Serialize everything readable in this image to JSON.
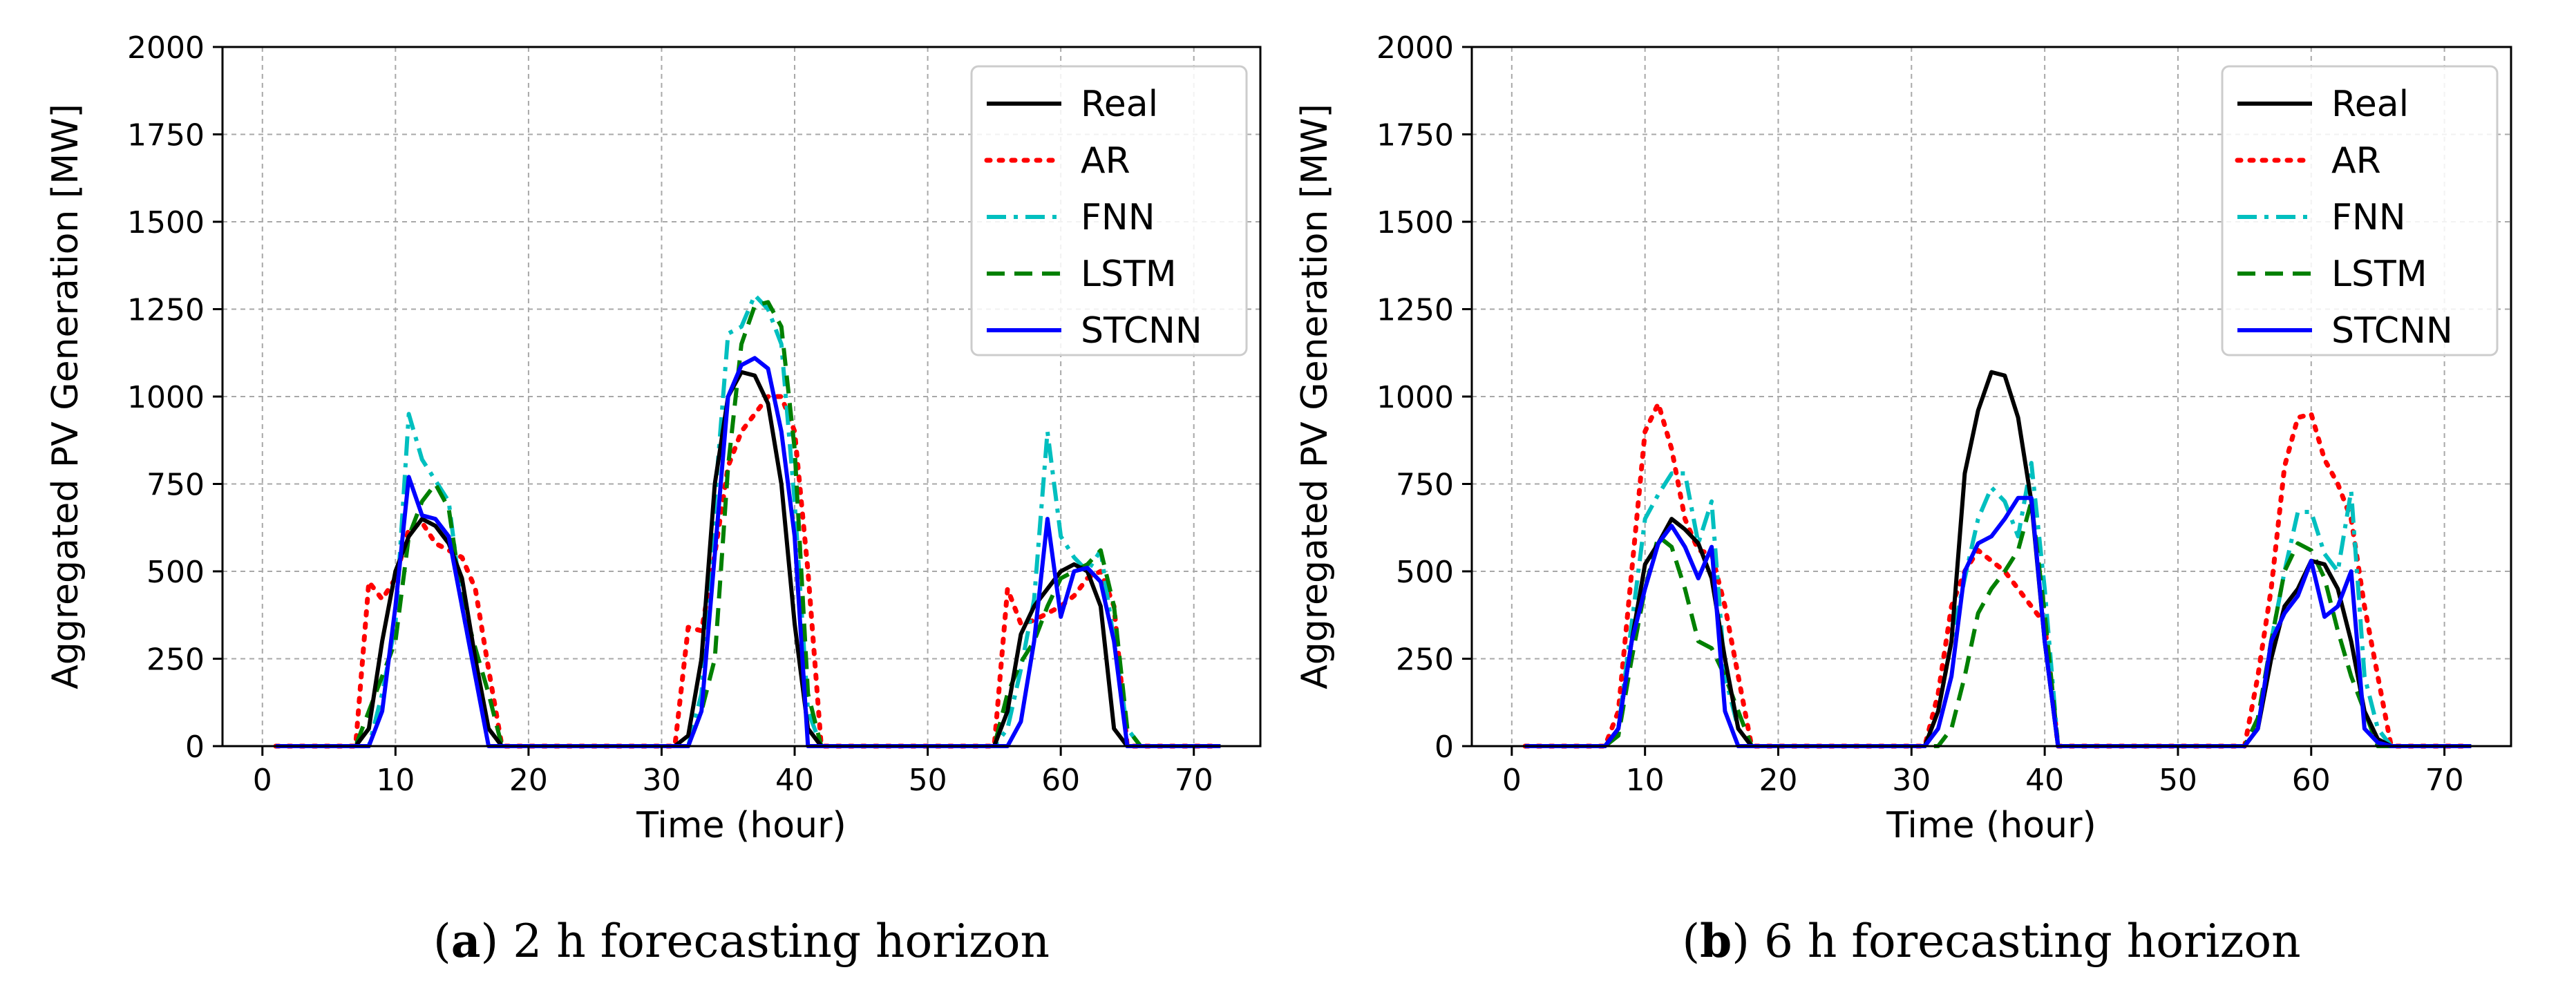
{
  "chart_data": [
    {
      "type": "line",
      "caption_letter": "a",
      "caption_text": " 2 h forecasting horizon",
      "xlabel": "Time (hour)",
      "ylabel": "Aggregated PV Generation [MW]",
      "xlim": [
        -3,
        75
      ],
      "ylim": [
        0,
        2000
      ],
      "xticks": [
        0,
        10,
        20,
        30,
        40,
        50,
        60,
        70
      ],
      "yticks": [
        0,
        250,
        500,
        750,
        1000,
        1250,
        1500,
        1750,
        2000
      ],
      "grid": true,
      "legend_position": "top-right",
      "x": [
        1,
        2,
        3,
        4,
        5,
        6,
        7,
        8,
        9,
        10,
        11,
        12,
        13,
        14,
        15,
        16,
        17,
        18,
        19,
        20,
        21,
        22,
        23,
        24,
        25,
        26,
        27,
        28,
        29,
        30,
        31,
        32,
        33,
        34,
        35,
        36,
        37,
        38,
        39,
        40,
        41,
        42,
        43,
        44,
        45,
        46,
        47,
        48,
        49,
        50,
        51,
        52,
        53,
        54,
        55,
        56,
        57,
        58,
        59,
        60,
        61,
        62,
        63,
        64,
        65,
        66,
        67,
        68,
        69,
        70,
        71,
        72
      ],
      "series": [
        {
          "name": "Real",
          "color": "#000000",
          "dash": "solid",
          "values": [
            0,
            0,
            0,
            0,
            0,
            0,
            0,
            50,
            300,
            500,
            600,
            650,
            630,
            580,
            480,
            250,
            50,
            0,
            0,
            0,
            0,
            0,
            0,
            0,
            0,
            0,
            0,
            0,
            0,
            0,
            0,
            30,
            250,
            750,
            1000,
            1070,
            1060,
            980,
            750,
            350,
            50,
            0,
            0,
            0,
            0,
            0,
            0,
            0,
            0,
            0,
            0,
            0,
            0,
            0,
            0,
            100,
            320,
            400,
            450,
            500,
            520,
            500,
            400,
            50,
            0,
            0,
            0,
            0,
            0,
            0,
            0,
            0
          ]
        },
        {
          "name": "AR",
          "color": "#ff0000",
          "dash": "dotted",
          "values": [
            0,
            0,
            0,
            0,
            0,
            0,
            0,
            470,
            420,
            480,
            620,
            640,
            580,
            560,
            540,
            450,
            220,
            0,
            0,
            0,
            0,
            0,
            0,
            0,
            0,
            0,
            0,
            0,
            0,
            0,
            0,
            340,
            330,
            550,
            800,
            900,
            950,
            1000,
            1000,
            900,
            500,
            0,
            0,
            0,
            0,
            0,
            0,
            0,
            0,
            0,
            0,
            0,
            0,
            0,
            0,
            450,
            350,
            360,
            380,
            400,
            430,
            480,
            500,
            400,
            0,
            0,
            0,
            0,
            0,
            0,
            0,
            0
          ]
        },
        {
          "name": "FNN",
          "color": "#00bfbf",
          "dash": "dashdot",
          "values": [
            0,
            0,
            0,
            0,
            0,
            0,
            0,
            0,
            150,
            350,
            950,
            820,
            760,
            700,
            400,
            200,
            50,
            0,
            0,
            0,
            0,
            0,
            0,
            0,
            0,
            0,
            0,
            0,
            0,
            0,
            0,
            0,
            150,
            700,
            1180,
            1200,
            1290,
            1250,
            1150,
            700,
            100,
            0,
            0,
            0,
            0,
            0,
            0,
            0,
            0,
            0,
            0,
            0,
            0,
            0,
            0,
            50,
            220,
            420,
            900,
            600,
            540,
            500,
            560,
            300,
            50,
            0,
            0,
            0,
            0,
            0,
            0,
            0
          ]
        },
        {
          "name": "LSTM",
          "color": "#008000",
          "dash": "dashed",
          "values": [
            0,
            0,
            0,
            0,
            0,
            0,
            0,
            100,
            200,
            300,
            600,
            700,
            750,
            680,
            420,
            280,
            150,
            0,
            0,
            0,
            0,
            0,
            0,
            0,
            0,
            0,
            0,
            0,
            0,
            0,
            0,
            0,
            100,
            250,
            800,
            1150,
            1260,
            1270,
            1200,
            850,
            150,
            0,
            0,
            0,
            0,
            0,
            0,
            0,
            0,
            0,
            0,
            0,
            0,
            0,
            0,
            150,
            240,
            300,
            400,
            480,
            500,
            520,
            560,
            400,
            50,
            0,
            0,
            0,
            0,
            0,
            0,
            0
          ]
        },
        {
          "name": "STCNN",
          "color": "#0000ff",
          "dash": "solid",
          "values": [
            0,
            0,
            0,
            0,
            0,
            0,
            0,
            0,
            100,
            400,
            770,
            660,
            650,
            600,
            400,
            200,
            0,
            0,
            0,
            0,
            0,
            0,
            0,
            0,
            0,
            0,
            0,
            0,
            0,
            0,
            0,
            0,
            100,
            550,
            1000,
            1090,
            1110,
            1080,
            900,
            600,
            0,
            0,
            0,
            0,
            0,
            0,
            0,
            0,
            0,
            0,
            0,
            0,
            0,
            0,
            0,
            0,
            70,
            300,
            650,
            370,
            500,
            510,
            470,
            300,
            0,
            0,
            0,
            0,
            0,
            0,
            0,
            0
          ]
        }
      ]
    },
    {
      "type": "line",
      "caption_letter": "b",
      "caption_text": " 6 h forecasting horizon",
      "xlabel": "Time (hour)",
      "ylabel": "Aggregated PV Generation [MW]",
      "xlim": [
        -3,
        75
      ],
      "ylim": [
        0,
        2000
      ],
      "xticks": [
        0,
        10,
        20,
        30,
        40,
        50,
        60,
        70
      ],
      "yticks": [
        0,
        250,
        500,
        750,
        1000,
        1250,
        1500,
        1750,
        2000
      ],
      "grid": true,
      "legend_position": "top-right",
      "x": [
        1,
        2,
        3,
        4,
        5,
        6,
        7,
        8,
        9,
        10,
        11,
        12,
        13,
        14,
        15,
        16,
        17,
        18,
        19,
        20,
        21,
        22,
        23,
        24,
        25,
        26,
        27,
        28,
        29,
        30,
        31,
        32,
        33,
        34,
        35,
        36,
        37,
        38,
        39,
        40,
        41,
        42,
        43,
        44,
        45,
        46,
        47,
        48,
        49,
        50,
        51,
        52,
        53,
        54,
        55,
        56,
        57,
        58,
        59,
        60,
        61,
        62,
        63,
        64,
        65,
        66,
        67,
        68,
        69,
        70,
        71,
        72
      ],
      "series": [
        {
          "name": "Real",
          "color": "#000000",
          "dash": "solid",
          "values": [
            0,
            0,
            0,
            0,
            0,
            0,
            0,
            50,
            300,
            520,
            580,
            650,
            620,
            580,
            480,
            250,
            50,
            0,
            0,
            0,
            0,
            0,
            0,
            0,
            0,
            0,
            0,
            0,
            0,
            0,
            0,
            100,
            300,
            780,
            960,
            1070,
            1060,
            940,
            700,
            300,
            0,
            0,
            0,
            0,
            0,
            0,
            0,
            0,
            0,
            0,
            0,
            0,
            0,
            0,
            0,
            50,
            250,
            400,
            450,
            530,
            520,
            450,
            300,
            100,
            20,
            0,
            0,
            0,
            0,
            0,
            0,
            0
          ]
        },
        {
          "name": "AR",
          "color": "#ff0000",
          "dash": "dotted",
          "values": [
            0,
            0,
            0,
            0,
            0,
            0,
            0,
            100,
            500,
            900,
            980,
            850,
            650,
            560,
            550,
            400,
            200,
            0,
            0,
            0,
            0,
            0,
            0,
            0,
            0,
            0,
            0,
            0,
            0,
            0,
            0,
            150,
            400,
            500,
            560,
            530,
            500,
            450,
            400,
            350,
            0,
            0,
            0,
            0,
            0,
            0,
            0,
            0,
            0,
            0,
            0,
            0,
            0,
            0,
            0,
            200,
            450,
            800,
            940,
            950,
            820,
            750,
            650,
            400,
            200,
            0,
            0,
            0,
            0,
            0,
            0,
            0
          ]
        },
        {
          "name": "FNN",
          "color": "#00bfbf",
          "dash": "dashdot",
          "values": [
            0,
            0,
            0,
            0,
            0,
            0,
            0,
            50,
            350,
            650,
            720,
            780,
            780,
            580,
            700,
            200,
            50,
            0,
            0,
            0,
            0,
            0,
            0,
            0,
            0,
            0,
            0,
            0,
            0,
            0,
            0,
            100,
            300,
            480,
            650,
            740,
            700,
            600,
            810,
            450,
            0,
            0,
            0,
            0,
            0,
            0,
            0,
            0,
            0,
            0,
            0,
            0,
            0,
            0,
            0,
            50,
            300,
            500,
            670,
            670,
            550,
            500,
            730,
            200,
            50,
            0,
            0,
            0,
            0,
            0,
            0,
            0
          ]
        },
        {
          "name": "LSTM",
          "color": "#008000",
          "dash": "dashed",
          "values": [
            0,
            0,
            0,
            0,
            0,
            0,
            0,
            30,
            250,
            450,
            600,
            570,
            450,
            300,
            280,
            200,
            100,
            0,
            0,
            0,
            0,
            0,
            0,
            0,
            0,
            0,
            0,
            0,
            0,
            0,
            0,
            0,
            50,
            200,
            380,
            450,
            500,
            560,
            700,
            380,
            0,
            0,
            0,
            0,
            0,
            0,
            0,
            0,
            0,
            0,
            0,
            0,
            0,
            0,
            0,
            80,
            300,
            500,
            580,
            560,
            480,
            330,
            200,
            100,
            0,
            0,
            0,
            0,
            0,
            0,
            0,
            0
          ]
        },
        {
          "name": "STCNN",
          "color": "#0000ff",
          "dash": "solid",
          "values": [
            0,
            0,
            0,
            0,
            0,
            0,
            0,
            50,
            300,
            450,
            580,
            630,
            570,
            480,
            570,
            100,
            0,
            0,
            0,
            0,
            0,
            0,
            0,
            0,
            0,
            0,
            0,
            0,
            0,
            0,
            0,
            50,
            200,
            500,
            580,
            600,
            650,
            710,
            710,
            300,
            0,
            0,
            0,
            0,
            0,
            0,
            0,
            0,
            0,
            0,
            0,
            0,
            0,
            0,
            0,
            50,
            300,
            380,
            430,
            530,
            370,
            400,
            500,
            50,
            10,
            0,
            0,
            0,
            0,
            0,
            0,
            0
          ]
        }
      ]
    }
  ]
}
